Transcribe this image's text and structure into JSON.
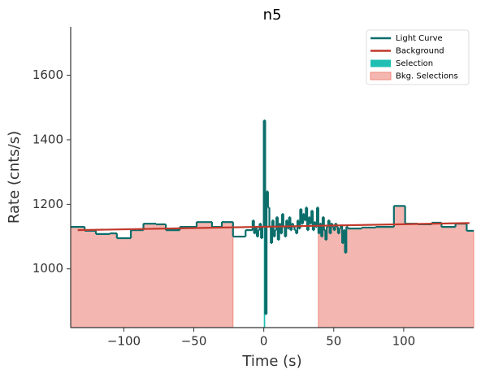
{
  "chart_data": {
    "type": "step",
    "title": "n5",
    "xlabel": "Time (s)",
    "ylabel": "Rate (cnts/s)",
    "xlim": [
      -138,
      150
    ],
    "ylim": [
      818,
      1750
    ],
    "xticks": [
      {
        "value": -100,
        "label": "−100"
      },
      {
        "value": -50,
        "label": "−50"
      },
      0,
      50,
      100
    ],
    "yticks": [
      1000,
      1200,
      1400,
      1600
    ],
    "legend": "upper right",
    "series": [
      {
        "name": "Light Curve",
        "color": "#0b6e6b",
        "bins": [
          -138,
          -128,
          -120,
          -110,
          -105,
          -95,
          -86,
          -77,
          -70,
          -60,
          -48,
          -37,
          -30,
          -22,
          -13,
          -8,
          -7,
          -6,
          -5,
          -4,
          -3,
          -2,
          -1,
          0,
          1,
          2,
          3,
          4,
          5,
          6,
          7,
          8,
          9,
          10,
          11,
          12,
          13,
          14,
          15,
          16,
          17,
          18,
          19,
          20,
          21,
          22,
          23,
          24,
          25,
          26,
          27,
          28,
          29,
          30,
          31,
          32,
          33,
          34,
          35,
          36,
          37,
          38,
          39,
          40,
          41,
          42,
          43,
          44,
          45,
          46,
          47,
          48,
          49,
          50,
          51,
          52,
          53,
          54,
          55,
          56,
          57,
          58,
          59,
          60,
          70,
          80,
          93,
          101,
          110,
          120,
          127,
          137,
          145,
          150
        ],
        "values": [
          1130,
          1118,
          1108,
          1110,
          1095,
          1120,
          1140,
          1138,
          1120,
          1130,
          1145,
          1130,
          1145,
          1100,
          1120,
          1150,
          1110,
          1130,
          1100,
          1120,
          1140,
          1095,
          1130,
          1460,
          860,
          1240,
          1190,
          1130,
          1080,
          1150,
          1100,
          1120,
          1160,
          1090,
          1140,
          1110,
          1170,
          1130,
          1100,
          1150,
          1125,
          1160,
          1120,
          1140,
          1130,
          1120,
          1110,
          1150,
          1125,
          1185,
          1140,
          1170,
          1150,
          1190,
          1120,
          1160,
          1140,
          1180,
          1120,
          1145,
          1130,
          1190,
          1110,
          1140,
          1100,
          1160,
          1120,
          1090,
          1130,
          1150,
          1110,
          1140,
          1130,
          1120,
          1140,
          1130,
          1110,
          1125,
          1135,
          1080,
          1120,
          1050,
          1130,
          1125,
          1128,
          1130,
          1195,
          1140,
          1138,
          1143,
          1130,
          1140,
          1118
        ]
      },
      {
        "name": "Background",
        "color": "#c0392b",
        "x": [
          -133,
          147
        ],
        "values": [
          1120,
          1142
        ]
      }
    ],
    "selection": {
      "name": "Selection",
      "color": "#1fbfb3",
      "range": [
        0,
        1
      ]
    },
    "bkg_selections": {
      "name": "Bkg. Selections",
      "color": "#f4b6b0",
      "ranges": [
        [
          -138,
          -22
        ],
        [
          39,
          150
        ]
      ]
    }
  }
}
